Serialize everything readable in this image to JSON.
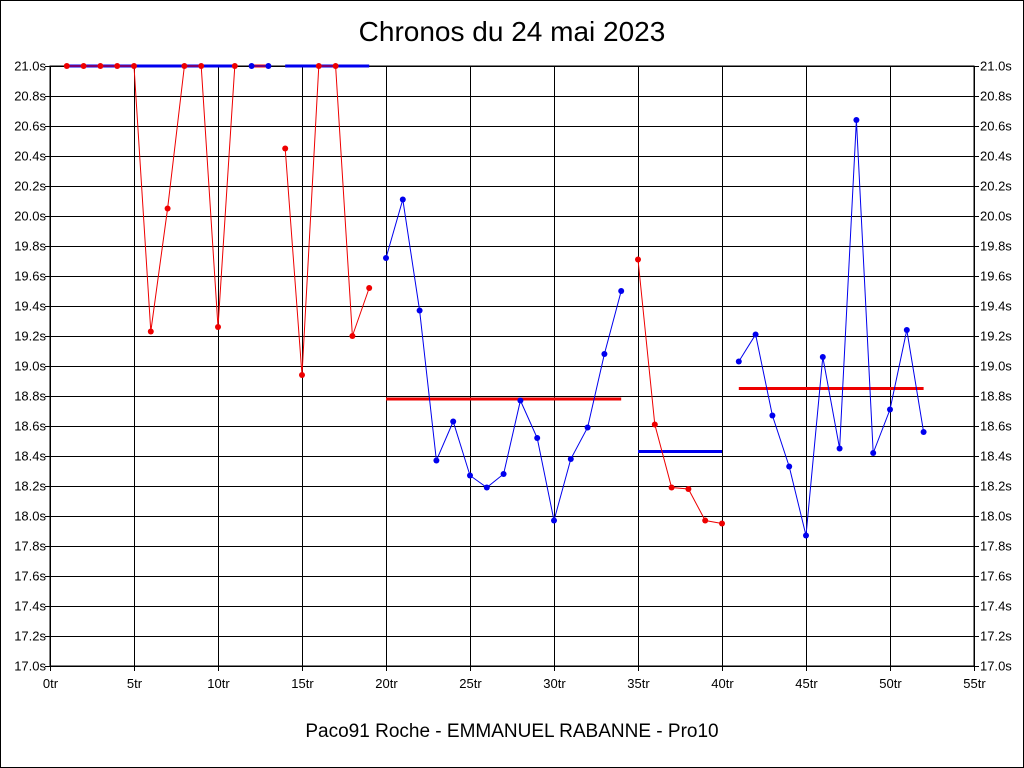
{
  "chart_data": {
    "type": "line",
    "title": "Chronos du 24 mai 2023",
    "footer": "Paco91 Roche - EMMANUEL RABANNE - Pro10",
    "xlim": [
      0,
      55
    ],
    "ylim": [
      17.0,
      21.0
    ],
    "x_ticks": [
      0,
      5,
      10,
      15,
      20,
      25,
      30,
      35,
      40,
      45,
      50,
      55
    ],
    "x_tick_labels": [
      "0tr",
      "5tr",
      "10tr",
      "15tr",
      "20tr",
      "25tr",
      "30tr",
      "35tr",
      "40tr",
      "45tr",
      "50tr",
      "55tr"
    ],
    "y_ticks": [
      17.0,
      17.2,
      17.4,
      17.6,
      17.8,
      18.0,
      18.2,
      18.4,
      18.6,
      18.8,
      19.0,
      19.2,
      19.4,
      19.6,
      19.8,
      20.0,
      20.2,
      20.4,
      20.6,
      20.8,
      21.0
    ],
    "y_tick_labels": [
      "17.0s",
      "17.2s",
      "17.4s",
      "17.6s",
      "17.8s",
      "18.0s",
      "18.2s",
      "18.4s",
      "18.6s",
      "18.8s",
      "19.0s",
      "19.2s",
      "19.4s",
      "19.6s",
      "19.8s",
      "20.0s",
      "20.2s",
      "20.4s",
      "20.6s",
      "20.8s",
      "21.0s"
    ],
    "grid": true,
    "colors": {
      "red": "#ee0000",
      "blue": "#0000ee"
    },
    "series": [
      {
        "color": "red",
        "x": [
          1,
          2,
          3,
          4,
          5,
          6,
          7,
          8,
          9,
          10,
          11
        ],
        "y": [
          21.0,
          21.0,
          21.0,
          21.0,
          21.0,
          19.23,
          20.05,
          21.0,
          21.0,
          19.26,
          21.0
        ]
      },
      {
        "color": "blue",
        "x": [
          12,
          13
        ],
        "y": [
          21.0,
          21.0
        ]
      },
      {
        "color": "red",
        "x": [
          14,
          15,
          16,
          17,
          18,
          19
        ],
        "y": [
          20.45,
          18.94,
          21.0,
          21.0,
          19.2,
          19.52
        ]
      },
      {
        "color": "blue",
        "x": [
          20,
          21,
          22,
          23,
          24,
          25,
          26,
          27,
          28,
          29,
          30,
          31,
          32,
          33,
          34
        ],
        "y": [
          19.72,
          20.11,
          19.37,
          18.37,
          18.63,
          18.27,
          18.19,
          18.28,
          18.77,
          18.52,
          17.97,
          18.38,
          18.59,
          19.08,
          19.5
        ]
      },
      {
        "color": "red",
        "x": [
          35,
          36,
          37,
          38,
          39,
          40
        ],
        "y": [
          19.71,
          18.61,
          18.19,
          18.18,
          17.97,
          17.95
        ]
      },
      {
        "color": "blue",
        "x": [
          41,
          42,
          43,
          44,
          45,
          46,
          47,
          48,
          49,
          50,
          51,
          52
        ],
        "y": [
          19.03,
          19.21,
          18.67,
          18.33,
          17.87,
          19.06,
          18.45,
          20.64,
          18.42,
          18.71,
          19.24,
          18.56
        ]
      }
    ],
    "means": [
      {
        "color": "blue",
        "x_start": 1,
        "x_end": 11,
        "y": 21.0
      },
      {
        "color": "red",
        "x_start": 12,
        "x_end": 13,
        "y": 21.0
      },
      {
        "color": "blue",
        "x_start": 14,
        "x_end": 19,
        "y": 21.0
      },
      {
        "color": "red",
        "x_start": 20,
        "x_end": 34,
        "y": 18.78
      },
      {
        "color": "blue",
        "x_start": 35,
        "x_end": 40,
        "y": 18.43
      },
      {
        "color": "red",
        "x_start": 41,
        "x_end": 52,
        "y": 18.85
      }
    ]
  }
}
